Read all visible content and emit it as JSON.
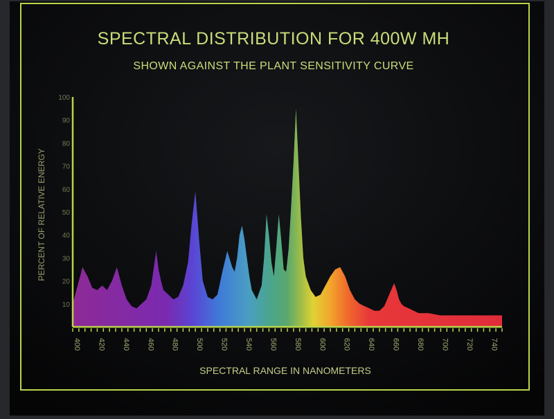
{
  "colors": {
    "background": "#0c0d0f",
    "frame": "#b9d64a",
    "title": "#c9de7a",
    "text": "#c4cf8a"
  },
  "chart_data": {
    "type": "area",
    "title": "SPECTRAL DISTRIBUTION FOR 400W MH",
    "subtitle": "SHOWN AGAINST THE PLANT SENSITIVITY CURVE",
    "xlabel": "SPECTRAL RANGE IN NANOMETERS",
    "ylabel": "PERCENT OF RELATIVE ENERGY",
    "xlim": [
      400,
      750
    ],
    "ylim": [
      0,
      100
    ],
    "xticks": [
      400,
      420,
      440,
      460,
      480,
      500,
      520,
      540,
      560,
      580,
      600,
      620,
      640,
      660,
      680,
      700,
      720,
      740
    ],
    "yticks": [
      10,
      20,
      30,
      40,
      50,
      60,
      70,
      80,
      90,
      100
    ],
    "grid": false,
    "fill": "visible-spectrum-gradient",
    "series": [
      {
        "x": [
          400,
          404,
          408,
          412,
          416,
          420,
          424,
          428,
          432,
          436,
          440,
          444,
          448,
          452,
          456,
          460,
          464,
          468,
          470,
          472,
          474,
          478,
          482,
          486,
          490,
          494,
          497,
          500,
          503,
          506,
          510,
          514,
          518,
          522,
          526,
          530,
          532,
          534,
          536,
          538,
          540,
          542,
          544,
          546,
          550,
          554,
          556,
          558,
          560,
          562,
          564,
          566,
          568,
          570,
          572,
          574,
          576,
          578,
          580,
          582,
          584,
          586,
          588,
          590,
          594,
          598,
          602,
          606,
          610,
          614,
          618,
          622,
          626,
          630,
          634,
          638,
          642,
          646,
          650,
          654,
          658,
          662,
          664,
          666,
          668,
          670,
          674,
          678,
          682,
          686,
          690,
          700,
          710,
          720,
          730,
          740,
          750
        ],
        "y": [
          10,
          18,
          26,
          22,
          17,
          16,
          18,
          16,
          20,
          26,
          18,
          12,
          9,
          8,
          10,
          12,
          18,
          33,
          25,
          20,
          16,
          14,
          12,
          13,
          18,
          28,
          45,
          59,
          38,
          20,
          13,
          12,
          14,
          24,
          33,
          26,
          24,
          30,
          40,
          44,
          38,
          30,
          22,
          16,
          12,
          18,
          30,
          49,
          40,
          28,
          22,
          35,
          49,
          38,
          25,
          24,
          34,
          52,
          72,
          95,
          72,
          48,
          30,
          22,
          16,
          13,
          14,
          18,
          22,
          25,
          26,
          22,
          16,
          12,
          10,
          9,
          8,
          7,
          7,
          9,
          14,
          19,
          16,
          12,
          10,
          9,
          8,
          7,
          6,
          6,
          6,
          5,
          5,
          5,
          5,
          5,
          5
        ]
      }
    ]
  }
}
